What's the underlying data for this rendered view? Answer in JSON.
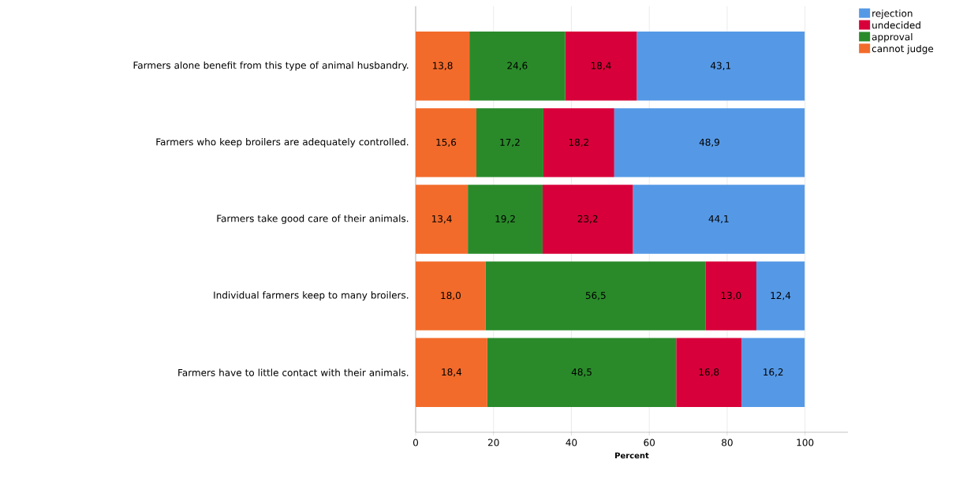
{
  "chart_data": {
    "type": "bar",
    "orientation": "horizontal",
    "stacked": true,
    "categories": [
      "Farmers alone benefit from this type of animal husbandry.",
      "Farmers who keep broilers are adequately controlled.",
      "Farmers take good care of their animals.",
      "Individual farmers keep to many broilers.",
      "Farmers have to little contact with their animals."
    ],
    "series": [
      {
        "name": "cannot judge",
        "color": "#f26b2b",
        "values": [
          13.8,
          15.6,
          13.4,
          18.0,
          18.4
        ],
        "value_labels": [
          "13,8",
          "15,6",
          "13,4",
          "18,0",
          "18,4"
        ]
      },
      {
        "name": "approval",
        "color": "#2a8a2a",
        "values": [
          24.6,
          17.2,
          19.2,
          56.5,
          48.5
        ],
        "value_labels": [
          "24,6",
          "17,2",
          "19,2",
          "56,5",
          "48,5"
        ]
      },
      {
        "name": "undecided",
        "color": "#d8003a",
        "values": [
          18.4,
          18.2,
          23.2,
          13.0,
          16.8
        ],
        "value_labels": [
          "18,4",
          "18,2",
          "23,2",
          "13,0",
          "16,8"
        ]
      },
      {
        "name": "rejection",
        "color": "#5599e6",
        "values": [
          43.1,
          48.9,
          44.1,
          12.4,
          16.2
        ],
        "value_labels": [
          "43,1",
          "48,9",
          "44,1",
          "12,4",
          "16,2"
        ]
      }
    ],
    "xlim": [
      0,
      111
    ],
    "xticks": [
      0,
      20,
      40,
      60,
      80,
      100
    ],
    "xlabel": "Percent",
    "grid": "x",
    "legend": "top right"
  }
}
